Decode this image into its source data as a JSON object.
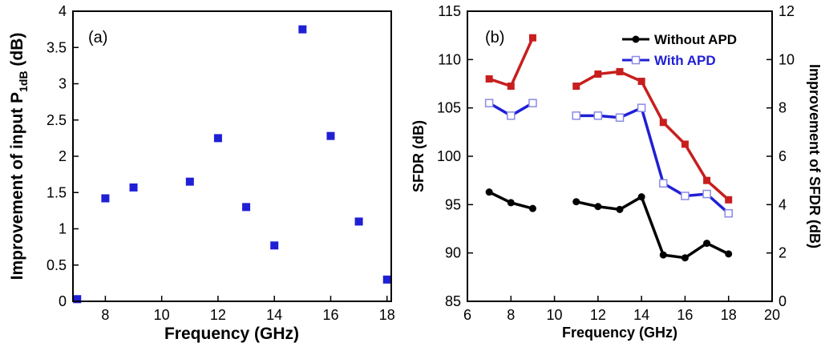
{
  "chart_data": [
    {
      "type": "scatter",
      "panel_label": "(a)",
      "xlabel": "Frequency (GHz)",
      "ylabel_main": "Improvement of input P",
      "ylabel_sub": "1dB",
      "ylabel_unit": " (dB)",
      "xlim": [
        7,
        18
      ],
      "ylim": [
        0,
        4
      ],
      "xticks": [
        "8",
        "10",
        "12",
        "14",
        "16",
        "18"
      ],
      "xtick_values": [
        8,
        10,
        12,
        14,
        16,
        18
      ],
      "yticks": [
        "0",
        "0.5",
        "1",
        "1.5",
        "2",
        "2.5",
        "3",
        "3.5",
        "4"
      ],
      "ytick_values": [
        0,
        0.5,
        1,
        1.5,
        2,
        2.5,
        3,
        3.5,
        4
      ],
      "color": "#1f1fd6",
      "points": [
        {
          "x": 7,
          "y": 0.03
        },
        {
          "x": 8,
          "y": 1.42
        },
        {
          "x": 9,
          "y": 1.57
        },
        {
          "x": 11,
          "y": 1.65
        },
        {
          "x": 12,
          "y": 2.25
        },
        {
          "x": 13,
          "y": 1.3
        },
        {
          "x": 14,
          "y": 0.77
        },
        {
          "x": 15,
          "y": 3.75
        },
        {
          "x": 16,
          "y": 2.28
        },
        {
          "x": 17,
          "y": 1.1
        },
        {
          "x": 18,
          "y": 0.3
        }
      ]
    },
    {
      "type": "line",
      "panel_label": "(b)",
      "xlabel": "Frequency (GHz)",
      "ylabel_left": "SFDR (dB)",
      "ylabel_right": "Improvement of SFDR (dB)",
      "xlim": [
        6,
        20
      ],
      "ylim_left": [
        85,
        115
      ],
      "ylim_right": [
        0,
        12
      ],
      "xticks": [
        "6",
        "8",
        "10",
        "12",
        "14",
        "16",
        "18",
        "20"
      ],
      "xtick_values": [
        6,
        8,
        10,
        12,
        14,
        16,
        18,
        20
      ],
      "yticks_left": [
        "85",
        "90",
        "95",
        "100",
        "105",
        "110",
        "115"
      ],
      "ytick_values_left": [
        85,
        90,
        95,
        100,
        105,
        110,
        115
      ],
      "yticks_right": [
        "0",
        "2",
        "4",
        "6",
        "8",
        "10",
        "12"
      ],
      "ytick_values_right": [
        0,
        2,
        4,
        6,
        8,
        10,
        12
      ],
      "legend_position": "top-right",
      "series": [
        {
          "name": "Without APD",
          "axis": "left",
          "marker": "circle",
          "color": "#000000",
          "segments": [
            {
              "x": [
                7,
                8,
                9
              ],
              "y": [
                96.3,
                95.2,
                94.6
              ]
            },
            {
              "x": [
                11,
                12,
                13,
                14,
                15,
                16,
                17,
                18
              ],
              "y": [
                95.3,
                94.8,
                94.5,
                95.8,
                89.8,
                89.5,
                91.0,
                89.9
              ]
            }
          ]
        },
        {
          "name": "With APD",
          "axis": "left",
          "marker": "open-square",
          "color": "#1f1fd6",
          "segments": [
            {
              "x": [
                7,
                8,
                9
              ],
              "y": [
                105.5,
                104.2,
                105.5
              ]
            },
            {
              "x": [
                11,
                12,
                13,
                14,
                15,
                16,
                17,
                18
              ],
              "y": [
                104.2,
                104.2,
                104.0,
                105.0,
                97.2,
                95.9,
                96.1,
                94.1
              ]
            }
          ]
        },
        {
          "axis": "right",
          "marker": "filled-square",
          "color": "#c81e1e",
          "segments": [
            {
              "x": [
                7,
                8,
                9
              ],
              "y": [
                9.2,
                8.9,
                10.9
              ]
            },
            {
              "x": [
                11,
                12,
                13,
                14,
                15,
                16,
                17,
                18
              ],
              "y": [
                8.9,
                9.4,
                9.5,
                9.1,
                7.4,
                6.5,
                5.0,
                4.2
              ]
            }
          ]
        }
      ]
    }
  ]
}
